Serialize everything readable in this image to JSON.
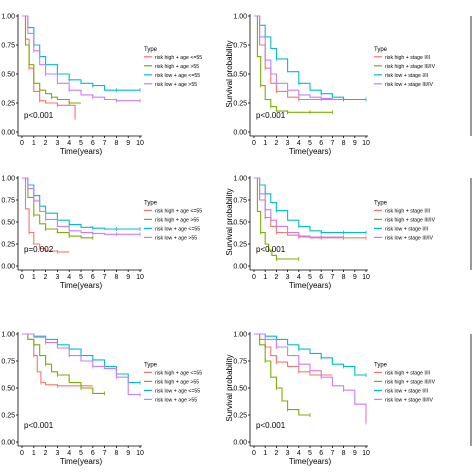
{
  "colors": {
    "risk_high_1": "#F8766D",
    "risk_high_2": "#7CAE00",
    "risk_low_1": "#00BFC4",
    "risk_low_2": "#C77CFF"
  },
  "chart_data": [
    {
      "type": "line",
      "panel": "age-1",
      "xlabel": "Time(years)",
      "ylabel": "",
      "xlim": [
        0,
        10
      ],
      "ylim": [
        0,
        1
      ],
      "xticks": [
        0,
        1,
        2,
        3,
        4,
        5,
        6,
        7,
        8,
        9,
        10
      ],
      "yticks": [
        "0.00",
        "0.25",
        "0.50",
        "0.75",
        "1.00"
      ],
      "legend_title": "Type",
      "pvalue": "p<0.001",
      "series": [
        {
          "name": "risk high + age <=55",
          "x": [
            0,
            0.3,
            0.6,
            1,
            1.5,
            2,
            3,
            4,
            4.5
          ],
          "y": [
            1,
            0.8,
            0.55,
            0.35,
            0.27,
            0.25,
            0.23,
            0.23,
            0.12
          ]
        },
        {
          "name": "risk high + age >55",
          "x": [
            0,
            0.3,
            0.6,
            1,
            1.5,
            2,
            2.5,
            3,
            4,
            5
          ],
          "y": [
            1,
            0.75,
            0.58,
            0.42,
            0.36,
            0.33,
            0.3,
            0.28,
            0.25,
            0.25
          ]
        },
        {
          "name": "risk low + age <=55",
          "x": [
            0,
            0.5,
            1,
            1.5,
            2,
            3,
            4,
            5,
            6,
            7,
            8,
            9,
            10
          ],
          "y": [
            1,
            0.9,
            0.75,
            0.65,
            0.58,
            0.5,
            0.45,
            0.42,
            0.4,
            0.36,
            0.36,
            0.36,
            0.36
          ]
        },
        {
          "name": "risk low + age >55",
          "x": [
            0,
            0.5,
            1,
            1.5,
            2,
            3,
            4,
            5,
            6,
            7,
            8,
            9,
            10
          ],
          "y": [
            1,
            0.85,
            0.7,
            0.58,
            0.5,
            0.42,
            0.36,
            0.32,
            0.3,
            0.28,
            0.27,
            0.27,
            0.27
          ]
        }
      ]
    },
    {
      "type": "line",
      "panel": "stage-1",
      "xlabel": "Time(years)",
      "ylabel": "Survival probability",
      "xlim": [
        0,
        10
      ],
      "ylim": [
        0,
        1
      ],
      "xticks": [
        0,
        1,
        2,
        3,
        4,
        5,
        6,
        7,
        8,
        9,
        10
      ],
      "yticks": [
        "0.00",
        "0.25",
        "0.50",
        "0.75",
        "1.00"
      ],
      "legend_title": "Type",
      "pvalue": "p<0.001",
      "series": [
        {
          "name": "risk high + stage I/II",
          "x": [
            0,
            0.5,
            1,
            1.5,
            2,
            3,
            4,
            5,
            6,
            7,
            8,
            10
          ],
          "y": [
            1,
            0.75,
            0.55,
            0.42,
            0.35,
            0.3,
            0.28,
            0.28,
            0.28,
            0.28,
            0.28,
            0.28
          ]
        },
        {
          "name": "risk high + stage III/IV",
          "x": [
            0,
            0.3,
            0.6,
            1,
            1.5,
            2,
            3,
            4,
            5,
            6,
            7
          ],
          "y": [
            1,
            0.65,
            0.4,
            0.28,
            0.22,
            0.18,
            0.17,
            0.17,
            0.17,
            0.17,
            0.17
          ]
        },
        {
          "name": "risk low + stage I/II",
          "x": [
            0,
            0.5,
            1,
            1.5,
            2,
            3,
            4,
            5,
            6,
            7,
            8,
            9,
            10
          ],
          "y": [
            1,
            0.92,
            0.82,
            0.72,
            0.63,
            0.52,
            0.42,
            0.36,
            0.33,
            0.3,
            0.28,
            0.28,
            0.28
          ]
        },
        {
          "name": "risk low + stage III/IV",
          "x": [
            0,
            0.5,
            1,
            1.5,
            2,
            3,
            4,
            5,
            6,
            7
          ],
          "y": [
            1,
            0.82,
            0.62,
            0.5,
            0.42,
            0.36,
            0.32,
            0.3,
            0.29,
            0.28
          ]
        }
      ]
    },
    {
      "type": "line",
      "panel": "age-2",
      "xlabel": "Time(years)",
      "ylabel": "",
      "xlim": [
        0,
        10
      ],
      "ylim": [
        0,
        1
      ],
      "xticks": [
        0,
        1,
        2,
        3,
        4,
        5,
        6,
        7,
        8,
        9,
        10
      ],
      "yticks": [
        "0.00",
        "0.25",
        "0.50",
        "0.75",
        "1.00"
      ],
      "legend_title": "Type",
      "pvalue": "p=0.002",
      "series": [
        {
          "name": "risk high + age <=55",
          "x": [
            0,
            0.3,
            0.6,
            1,
            1.5,
            2,
            3,
            4
          ],
          "y": [
            1,
            0.65,
            0.38,
            0.25,
            0.2,
            0.17,
            0.16,
            0.16
          ]
        },
        {
          "name": "risk high + age >55",
          "x": [
            0,
            0.5,
            1,
            1.5,
            2,
            3,
            4,
            5,
            6
          ],
          "y": [
            1,
            0.78,
            0.58,
            0.48,
            0.42,
            0.38,
            0.34,
            0.32,
            0.32
          ]
        },
        {
          "name": "risk low + age <=55",
          "x": [
            0,
            0.5,
            1,
            1.5,
            2,
            3,
            4,
            5,
            6,
            7,
            8,
            9,
            10
          ],
          "y": [
            1,
            0.92,
            0.8,
            0.68,
            0.6,
            0.52,
            0.47,
            0.44,
            0.43,
            0.42,
            0.42,
            0.42,
            0.42
          ]
        },
        {
          "name": "risk low + age >55",
          "x": [
            0,
            0.5,
            1,
            1.5,
            2,
            3,
            4,
            5,
            6,
            7,
            8,
            9,
            10
          ],
          "y": [
            1,
            0.88,
            0.74,
            0.62,
            0.53,
            0.45,
            0.4,
            0.38,
            0.37,
            0.36,
            0.36,
            0.36,
            0.36
          ]
        }
      ]
    },
    {
      "type": "line",
      "panel": "stage-2",
      "xlabel": "Time(years)",
      "ylabel": "Survival probability",
      "xlim": [
        0,
        10
      ],
      "ylim": [
        0,
        1
      ],
      "xticks": [
        0,
        1,
        2,
        3,
        4,
        5,
        6,
        7,
        8,
        9,
        10
      ],
      "yticks": [
        "0.00",
        "0.25",
        "0.50",
        "0.75",
        "1.00"
      ],
      "legend_title": "Type",
      "pvalue": "p<0.001",
      "series": [
        {
          "name": "risk high + stage I/II",
          "x": [
            0,
            0.5,
            1,
            1.5,
            2,
            3,
            4,
            5,
            6,
            7,
            8,
            9,
            10
          ],
          "y": [
            1,
            0.75,
            0.55,
            0.45,
            0.38,
            0.35,
            0.33,
            0.32,
            0.32,
            0.32,
            0.32,
            0.32,
            0.32
          ]
        },
        {
          "name": "risk high + stage III/IV",
          "x": [
            0,
            0.3,
            0.6,
            1,
            1.3,
            1.6,
            2,
            3,
            4
          ],
          "y": [
            1,
            0.62,
            0.38,
            0.25,
            0.18,
            0.12,
            0.08,
            0.08,
            0.08
          ]
        },
        {
          "name": "risk low + stage I/II",
          "x": [
            0,
            0.5,
            1,
            1.5,
            2,
            3,
            4,
            5,
            6,
            7,
            8,
            9,
            10
          ],
          "y": [
            1,
            0.92,
            0.82,
            0.72,
            0.63,
            0.52,
            0.45,
            0.4,
            0.38,
            0.38,
            0.38,
            0.38,
            0.38
          ]
        },
        {
          "name": "risk low + stage III/IV",
          "x": [
            0,
            0.5,
            1,
            1.5,
            2,
            3,
            4,
            5,
            6,
            7,
            8
          ],
          "y": [
            1,
            0.82,
            0.64,
            0.52,
            0.45,
            0.38,
            0.34,
            0.33,
            0.33,
            0.33,
            0.33
          ]
        }
      ]
    },
    {
      "type": "line",
      "panel": "age-3",
      "xlabel": "Time(years)",
      "ylabel": "",
      "xlim": [
        0,
        10
      ],
      "ylim": [
        0,
        1
      ],
      "xticks": [
        0,
        1,
        2,
        3,
        4,
        5,
        6,
        7,
        8,
        9,
        10
      ],
      "yticks": [
        "0.00",
        "0.25",
        "0.50",
        "0.75",
        "1.00"
      ],
      "legend_title": "Type",
      "pvalue": "p<0.001",
      "series": [
        {
          "name": "risk high + age <=55",
          "x": [
            0,
            0.5,
            1,
            1.3,
            1.6,
            2,
            3,
            4,
            5,
            6
          ],
          "y": [
            1,
            0.95,
            0.8,
            0.65,
            0.55,
            0.53,
            0.52,
            0.52,
            0.52,
            0.52
          ]
        },
        {
          "name": "risk high + age >55",
          "x": [
            0,
            0.5,
            1,
            1.5,
            2,
            2.5,
            3,
            4,
            5,
            6,
            7
          ],
          "y": [
            1,
            0.95,
            0.9,
            0.8,
            0.72,
            0.65,
            0.62,
            0.55,
            0.5,
            0.45,
            0.45
          ]
        },
        {
          "name": "risk low + age <=55",
          "x": [
            0,
            1,
            2,
            3,
            4,
            5,
            6,
            7,
            8,
            9,
            10
          ],
          "y": [
            1,
            0.98,
            0.95,
            0.9,
            0.86,
            0.8,
            0.76,
            0.7,
            0.63,
            0.55,
            0.55
          ]
        },
        {
          "name": "risk low + age >55",
          "x": [
            0,
            1,
            2,
            3,
            4,
            5,
            6,
            7,
            8,
            9,
            10
          ],
          "y": [
            1,
            0.97,
            0.92,
            0.87,
            0.8,
            0.75,
            0.7,
            0.68,
            0.6,
            0.44,
            0.44
          ]
        }
      ]
    },
    {
      "type": "line",
      "panel": "stage-3",
      "xlabel": "Time(years)",
      "ylabel": "Survival probability",
      "xlim": [
        0,
        10
      ],
      "ylim": [
        0,
        1
      ],
      "xticks": [
        0,
        1,
        2,
        3,
        4,
        5,
        6,
        7,
        8,
        9,
        10
      ],
      "yticks": [
        "0.00",
        "0.25",
        "0.50",
        "0.75",
        "1.00"
      ],
      "legend_title": "Type",
      "pvalue": "p<0.001",
      "series": [
        {
          "name": "risk high + stage I/II",
          "x": [
            0,
            0.5,
            1,
            1.5,
            2,
            3,
            4,
            5,
            6,
            7
          ],
          "y": [
            1,
            0.95,
            0.88,
            0.8,
            0.74,
            0.7,
            0.65,
            0.62,
            0.62,
            0.62
          ]
        },
        {
          "name": "risk high + stage III/IV",
          "x": [
            0,
            0.5,
            1,
            1.5,
            2,
            2.5,
            3,
            4,
            5
          ],
          "y": [
            1,
            0.9,
            0.75,
            0.6,
            0.5,
            0.38,
            0.3,
            0.25,
            0.25
          ]
        },
        {
          "name": "risk low + stage I/II",
          "x": [
            0,
            1,
            2,
            3,
            4,
            5,
            6,
            7,
            8,
            9,
            10
          ],
          "y": [
            1,
            0.98,
            0.95,
            0.9,
            0.86,
            0.82,
            0.78,
            0.72,
            0.7,
            0.62,
            0.62
          ]
        },
        {
          "name": "risk low + stage III/IV",
          "x": [
            0,
            1,
            2,
            3,
            4,
            5,
            6,
            7,
            8,
            9,
            10
          ],
          "y": [
            1,
            0.95,
            0.88,
            0.8,
            0.72,
            0.66,
            0.6,
            0.52,
            0.48,
            0.35,
            0.18
          ]
        }
      ]
    }
  ]
}
